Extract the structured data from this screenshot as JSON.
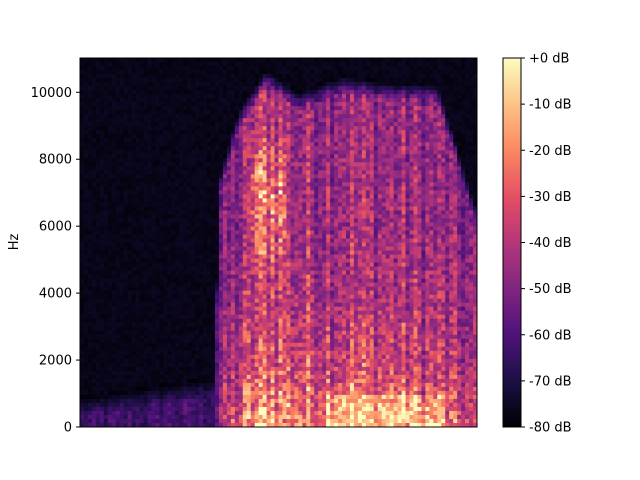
{
  "chart_data": {
    "type": "heatmap",
    "subtype": "spectrogram",
    "title": "",
    "xlabel": "",
    "ylabel": "Hz",
    "ylim": [
      0,
      11025
    ],
    "y_ticks": [
      0,
      2000,
      4000,
      6000,
      8000,
      10000
    ],
    "y_tick_labels": [
      "0",
      "2000",
      "4000",
      "6000",
      "8000",
      "10000"
    ],
    "x_ticks": [],
    "colormap": "magma",
    "colorbar": {
      "range_db": [
        -80,
        0
      ],
      "ticks": [
        0,
        -10,
        -20,
        -30,
        -40,
        -50,
        -60,
        -70,
        -80
      ],
      "tick_labels": [
        "+0 dB",
        "-10 dB",
        "-20 dB",
        "-30 dB",
        "-40 dB",
        "-50 dB",
        "-60 dB",
        "-70 dB",
        "-80 dB"
      ],
      "placement": "right"
    },
    "colormap_stops": [
      "#000004",
      "#1c1044",
      "#4f127b",
      "#812581",
      "#b5367a",
      "#e55064",
      "#fb8861",
      "#fec287",
      "#fcfdbf"
    ],
    "grid": false,
    "silence_fraction": 0.34,
    "activity_envelope": [
      {
        "t": 0.0,
        "energy": 0.02,
        "max_freq": 900
      },
      {
        "t": 0.34,
        "energy": 0.05,
        "max_freq": 1500
      },
      {
        "t": 0.35,
        "energy": 0.35,
        "max_freq": 7500
      },
      {
        "t": 0.4,
        "energy": 0.6,
        "max_freq": 9500
      },
      {
        "t": 0.47,
        "energy": 0.9,
        "max_freq": 10700
      },
      {
        "t": 0.55,
        "energy": 0.75,
        "max_freq": 10000
      },
      {
        "t": 0.66,
        "energy": 0.8,
        "max_freq": 10500
      },
      {
        "t": 0.78,
        "energy": 0.7,
        "max_freq": 10300
      },
      {
        "t": 0.9,
        "energy": 0.65,
        "max_freq": 10300
      },
      {
        "t": 1.0,
        "energy": 0.45,
        "max_freq": 6500
      }
    ]
  }
}
